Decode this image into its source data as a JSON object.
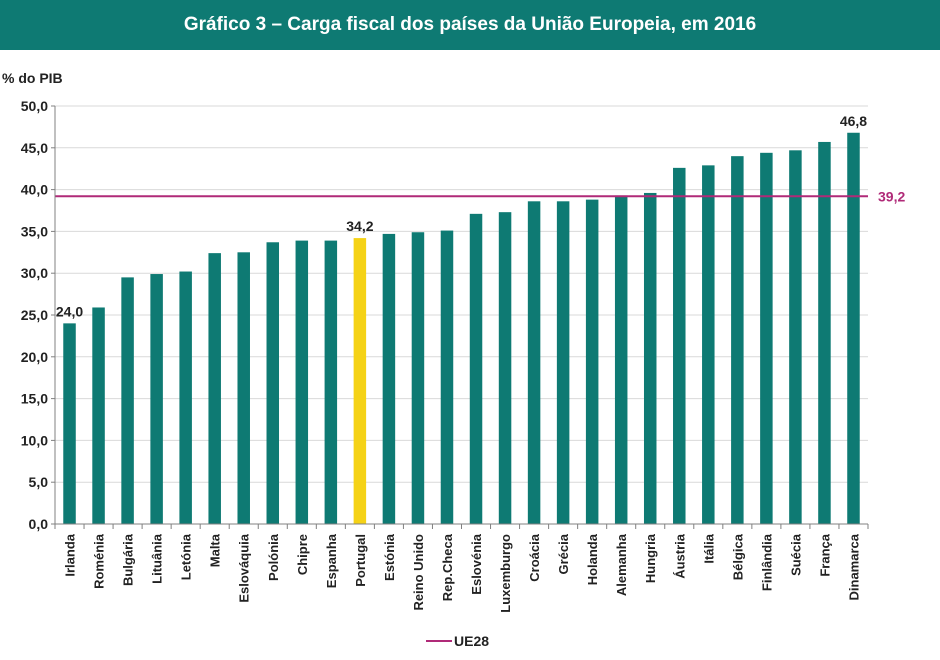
{
  "title": "Gráfico 3 – Carga fiscal dos países da União Europeia, em 2016",
  "colors": {
    "title_bg": "#0e7a73",
    "bar": "#0e7a73",
    "highlight": "#f5d216",
    "ref_line": "#b02a78"
  },
  "chart_data": {
    "type": "bar",
    "ylabel": "% do PIB",
    "xlabel": "",
    "ylim": [
      0,
      50
    ],
    "yticks": [
      "0,0",
      "5,0",
      "10,0",
      "15,0",
      "20,0",
      "25,0",
      "30,0",
      "35,0",
      "40,0",
      "45,0",
      "50,0"
    ],
    "grid": true,
    "categories": [
      "Irlanda",
      "Roménia",
      "Bulgária",
      "Lituânia",
      "Letónia",
      "Malta",
      "Eslováquia",
      "Polónia",
      "Chipre",
      "Espanha",
      "Portugal",
      "Estónia",
      "Reino Unido",
      "Rep.Checa",
      "Eslovénia",
      "Luxemburgo",
      "Croácia",
      "Grécia",
      "Holanda",
      "Alemanha",
      "Hungria",
      "Áustria",
      "Itália",
      "Bélgica",
      "Finlândia",
      "Suécia",
      "França",
      "Dinamarca"
    ],
    "values": [
      24.0,
      25.9,
      29.5,
      29.9,
      30.2,
      32.4,
      32.5,
      33.7,
      33.9,
      33.9,
      34.2,
      34.7,
      34.9,
      35.1,
      37.1,
      37.3,
      38.6,
      38.6,
      38.8,
      39.3,
      39.6,
      42.6,
      42.9,
      44.0,
      44.4,
      44.7,
      45.7,
      46.8
    ],
    "highlight_category": "Portugal",
    "data_labels": [
      {
        "category": "Irlanda",
        "text": "24,0"
      },
      {
        "category": "Portugal",
        "text": "34,2"
      },
      {
        "category": "Dinamarca",
        "text": "46,8"
      }
    ],
    "reference_line": {
      "name": "UE28",
      "value": 39.2,
      "label": "39,2"
    },
    "legend": {
      "position": "bottom",
      "entries": [
        "UE28"
      ]
    }
  }
}
